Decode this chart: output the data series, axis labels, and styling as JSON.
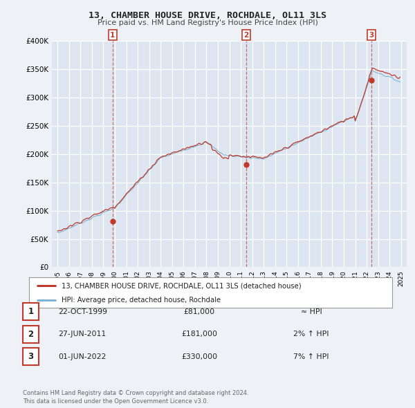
{
  "title": "13, CHAMBER HOUSE DRIVE, ROCHDALE, OL11 3LS",
  "subtitle": "Price paid vs. HM Land Registry's House Price Index (HPI)",
  "ylim": [
    0,
    400000
  ],
  "xlim_start": 1994.5,
  "xlim_end": 2025.5,
  "background_color": "#eef2f7",
  "plot_bg_color": "#dde6f0",
  "grid_color": "#c8d4e0",
  "sale_color": "#c0392b",
  "hpi_color": "#7fb3d3",
  "sale_label": "13, CHAMBER HOUSE DRIVE, ROCHDALE, OL11 3LS (detached house)",
  "hpi_label": "HPI: Average price, detached house, Rochdale",
  "transactions": [
    {
      "id": 1,
      "date": "22-OCT-1999",
      "year": 1999.81,
      "price": 81000,
      "hpi_note": "≈ HPI"
    },
    {
      "id": 2,
      "date": "27-JUN-2011",
      "year": 2011.49,
      "price": 181000,
      "hpi_note": "2% ↑ HPI"
    },
    {
      "id": 3,
      "date": "01-JUN-2022",
      "year": 2022.42,
      "price": 330000,
      "hpi_note": "7% ↑ HPI"
    }
  ],
  "footer": "Contains HM Land Registry data © Crown copyright and database right 2024.\nThis data is licensed under the Open Government Licence v3.0.",
  "yticks": [
    0,
    50000,
    100000,
    150000,
    200000,
    250000,
    300000,
    350000,
    400000
  ],
  "ytick_labels": [
    "£0",
    "£50K",
    "£100K",
    "£150K",
    "£200K",
    "£250K",
    "£300K",
    "£350K",
    "£400K"
  ]
}
